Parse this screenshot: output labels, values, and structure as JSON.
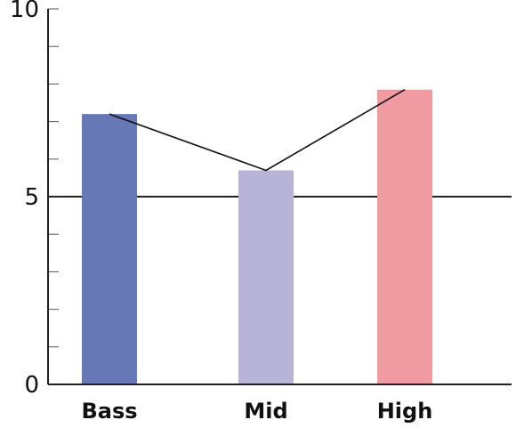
{
  "chart_data": {
    "type": "bar",
    "categories": [
      "Bass",
      "Mid",
      "High"
    ],
    "values": [
      7.2,
      5.7,
      7.85
    ],
    "colors": [
      "#6678b6",
      "#b8b4d8",
      "#f09aa2"
    ],
    "overlay_line": true,
    "ylim": [
      0,
      10
    ],
    "yticks": [
      0,
      5,
      10
    ],
    "ytick_labels": [
      "0",
      "5",
      "10"
    ],
    "minor_tick_step": 1,
    "reference_line": 5,
    "title": "",
    "xlabel": "",
    "ylabel": ""
  }
}
